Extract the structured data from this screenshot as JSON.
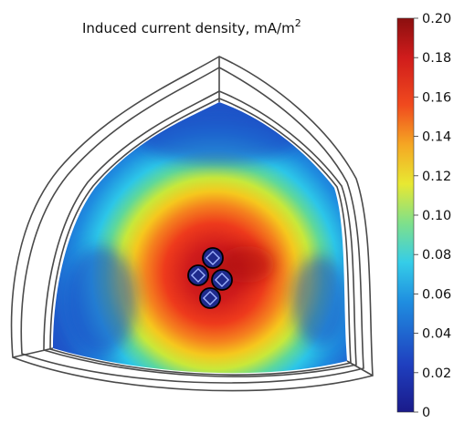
{
  "title": {
    "text": "Induced current density, mA/m",
    "superscript": "2"
  },
  "colorbar": {
    "min": 0,
    "max": 0.2,
    "ticks": [
      "0.20",
      "0.18",
      "0.16",
      "0.14",
      "0.12",
      "0.10",
      "0.08",
      "0.06",
      "0.04",
      "0.02",
      "0"
    ],
    "colormap": [
      "#1a1a8a",
      "#1f3fbf",
      "#1f8ee0",
      "#35cde8",
      "#7fe08a",
      "#e8e832",
      "#f5a623",
      "#f04a1e",
      "#d01c1c",
      "#8b0f0f"
    ]
  },
  "electrodes": {
    "count": 4,
    "fill_color": "#1e2a8c",
    "outline_color": "#000000"
  },
  "domain_colors": {
    "outer_boundary": "#444444",
    "background_field": "#1f3fbf",
    "hotspot_peak": "#d01c1c"
  }
}
